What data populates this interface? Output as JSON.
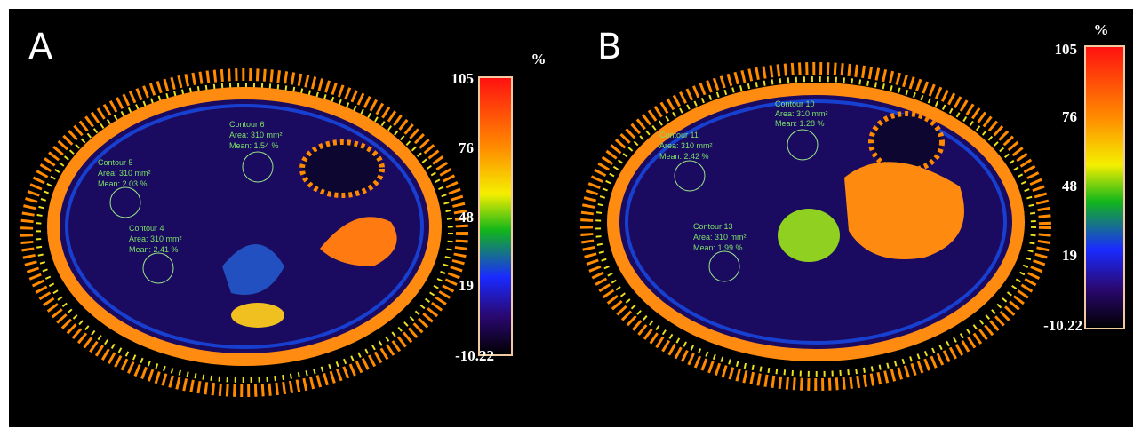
{
  "panels": [
    {
      "label": "A",
      "colorbar": {
        "unit": "%",
        "ticks": [
          "105",
          "76",
          "48",
          "19",
          "-10.22"
        ]
      },
      "contours": [
        {
          "name": "Contour 6",
          "area": "Area: 310 mm²",
          "mean": "Mean: 1.54 %"
        },
        {
          "name": "Contour 5",
          "area": "Area: 310 mm²",
          "mean": "Mean: 2.03 %"
        },
        {
          "name": "Contour 4",
          "area": "Area: 310 mm²",
          "mean": "Mean: 2.41 %"
        }
      ]
    },
    {
      "label": "B",
      "colorbar": {
        "unit": "%",
        "ticks": [
          "105",
          "76",
          "48",
          "19",
          "-10.22"
        ]
      },
      "contours": [
        {
          "name": "Contour 10",
          "area": "Area: 310 mm²",
          "mean": "Mean: 1.28 %"
        },
        {
          "name": "Contour 11",
          "area": "Area: 310 mm²",
          "mean": "Mean: 2.42 %"
        },
        {
          "name": "Contour 13",
          "area": "Area: 310 mm²",
          "mean": "Mean: 1.99 %"
        }
      ]
    }
  ]
}
